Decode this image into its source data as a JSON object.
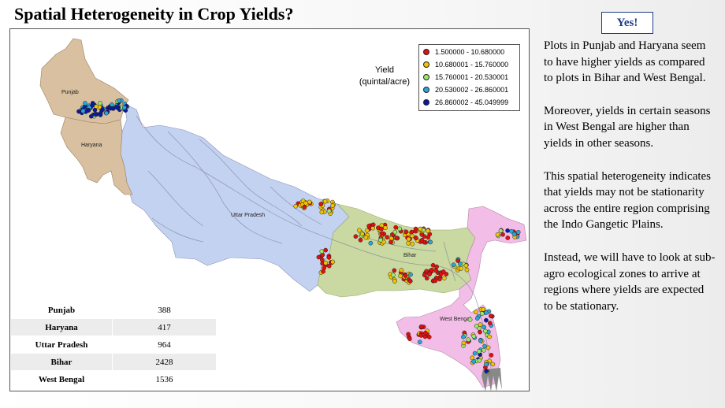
{
  "title": "Spatial Heterogeneity in Crop Yields?",
  "answer_badge": "Yes!",
  "notes": [
    "Plots in Punjab and Haryana seem to have higher yields as compared to plots in Bihar and West Bengal.",
    "Moreover, yields in certain seasons in West Bengal are higher than yields in other seasons.",
    "This spatial heterogeneity indicates that yields may not be stationarity across the entire region comprising the Indo Gangetic Plains.",
    "Instead, we will have to look at sub-agro ecological zones to arrive at regions where yields are expected to be stationary."
  ],
  "map": {
    "yield_label_line1": "Yield",
    "yield_label_line2": "(quintal/acre)",
    "state_labels": {
      "punjab": "Punjab",
      "haryana": "Haryana",
      "uttar_pradesh": "Uttar Pradesh",
      "bihar": "Bihar",
      "west_bengal": "West Bengal"
    },
    "state_colors": {
      "punjab": "#d8c0a0",
      "haryana": "#d8c0a0",
      "uttar_pradesh": "#c4d2f2",
      "bihar": "#c9d9a1",
      "west_bengal": "#f2bde6"
    },
    "legend": [
      {
        "label": "1.500000 - 10.680000",
        "color": "#e01010"
      },
      {
        "label": "10.680001 - 15.760000",
        "color": "#f2c400"
      },
      {
        "label": "15.760001 - 20.530001",
        "color": "#9be86a"
      },
      {
        "label": "20.530002 - 26.860001",
        "color": "#29a8d8"
      },
      {
        "label": "26.860002 - 45.049999",
        "color": "#0a1aa0"
      }
    ]
  },
  "plot_counts": [
    {
      "state": "Punjab",
      "count": "388"
    },
    {
      "state": "Haryana",
      "count": "417"
    },
    {
      "state": "Uttar Pradesh",
      "count": "964"
    },
    {
      "state": "Bihar",
      "count": "2428"
    },
    {
      "state": "West Bengal",
      "count": "1536"
    }
  ]
}
